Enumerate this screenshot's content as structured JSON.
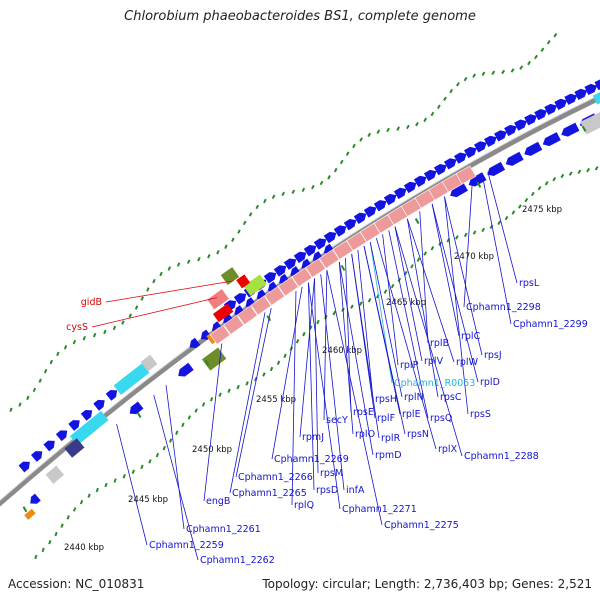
{
  "title": "Chlorobium phaeobacteroides BS1, complete genome",
  "footer": {
    "accession": "Accession: NC_010831",
    "summary": "Topology: circular; Length: 2,736,403 bp; Genes: 2,521"
  },
  "colors": {
    "cds": "#1414e0",
    "rrna": "#ee9a9a",
    "red_feature": "#ee0000",
    "pink_feature": "#f08080",
    "olive_feature": "#6e8c2a",
    "lime_feature": "#a8e040",
    "cyan_feature": "#38d8ee",
    "orange_feature": "#f08a10",
    "navy_feature": "#3a3a8a",
    "gray_feature": "#c8c8c8",
    "backbone": "#8a8a8a",
    "blue_label": "#1414cc",
    "red_label": "#dd0000",
    "cyan_label": "#1ab8dd",
    "gc_dots": "#2a8a2a"
  },
  "kbp_ticks": [
    "2440 kbp",
    "2445 kbp",
    "2450 kbp",
    "2455 kbp",
    "2460 kbp",
    "2465 kbp",
    "2470 kbp",
    "2475 kbp"
  ],
  "gene_labels": [
    {
      "text": "gidB",
      "color": "red"
    },
    {
      "text": "cysS",
      "color": "red"
    },
    {
      "text": "rpsL",
      "color": "blue"
    },
    {
      "text": "Cphamn1_2298",
      "color": "blue"
    },
    {
      "text": "Cphamn1_2299",
      "color": "blue"
    },
    {
      "text": "rplC",
      "color": "blue"
    },
    {
      "text": "rplB",
      "color": "blue"
    },
    {
      "text": "rpsJ",
      "color": "blue"
    },
    {
      "text": "rplW",
      "color": "blue"
    },
    {
      "text": "rplV",
      "color": "blue"
    },
    {
      "text": "rplP",
      "color": "blue"
    },
    {
      "text": "rplD",
      "color": "blue"
    },
    {
      "text": "Cphamn1_R0053",
      "color": "cyan"
    },
    {
      "text": "rpsH",
      "color": "blue"
    },
    {
      "text": "rplN",
      "color": "blue"
    },
    {
      "text": "rpsC",
      "color": "blue"
    },
    {
      "text": "rpsS",
      "color": "blue"
    },
    {
      "text": "rpsE",
      "color": "blue"
    },
    {
      "text": "rplF",
      "color": "blue"
    },
    {
      "text": "rplE",
      "color": "blue"
    },
    {
      "text": "rpsQ",
      "color": "blue"
    },
    {
      "text": "secY",
      "color": "blue"
    },
    {
      "text": "rplO",
      "color": "blue"
    },
    {
      "text": "rplR",
      "color": "blue"
    },
    {
      "text": "rpsN",
      "color": "blue"
    },
    {
      "text": "rpmJ",
      "color": "blue"
    },
    {
      "text": "rpmD",
      "color": "blue"
    },
    {
      "text": "rplX",
      "color": "blue"
    },
    {
      "text": "Cphamn1_2288",
      "color": "blue"
    },
    {
      "text": "Cphamn1_2269",
      "color": "blue"
    },
    {
      "text": "rpsM",
      "color": "blue"
    },
    {
      "text": "Cphamn1_2266",
      "color": "blue"
    },
    {
      "text": "rpsD",
      "color": "blue"
    },
    {
      "text": "infA",
      "color": "blue"
    },
    {
      "text": "Cphamn1_2265",
      "color": "blue"
    },
    {
      "text": "rplQ",
      "color": "blue"
    },
    {
      "text": "Cphamn1_2271",
      "color": "blue"
    },
    {
      "text": "engB",
      "color": "blue"
    },
    {
      "text": "Cphamn1_2275",
      "color": "blue"
    },
    {
      "text": "Cphamn1_2261",
      "color": "blue"
    },
    {
      "text": "Cphamn1_2259",
      "color": "blue"
    },
    {
      "text": "Cphamn1_2262",
      "color": "blue"
    }
  ]
}
